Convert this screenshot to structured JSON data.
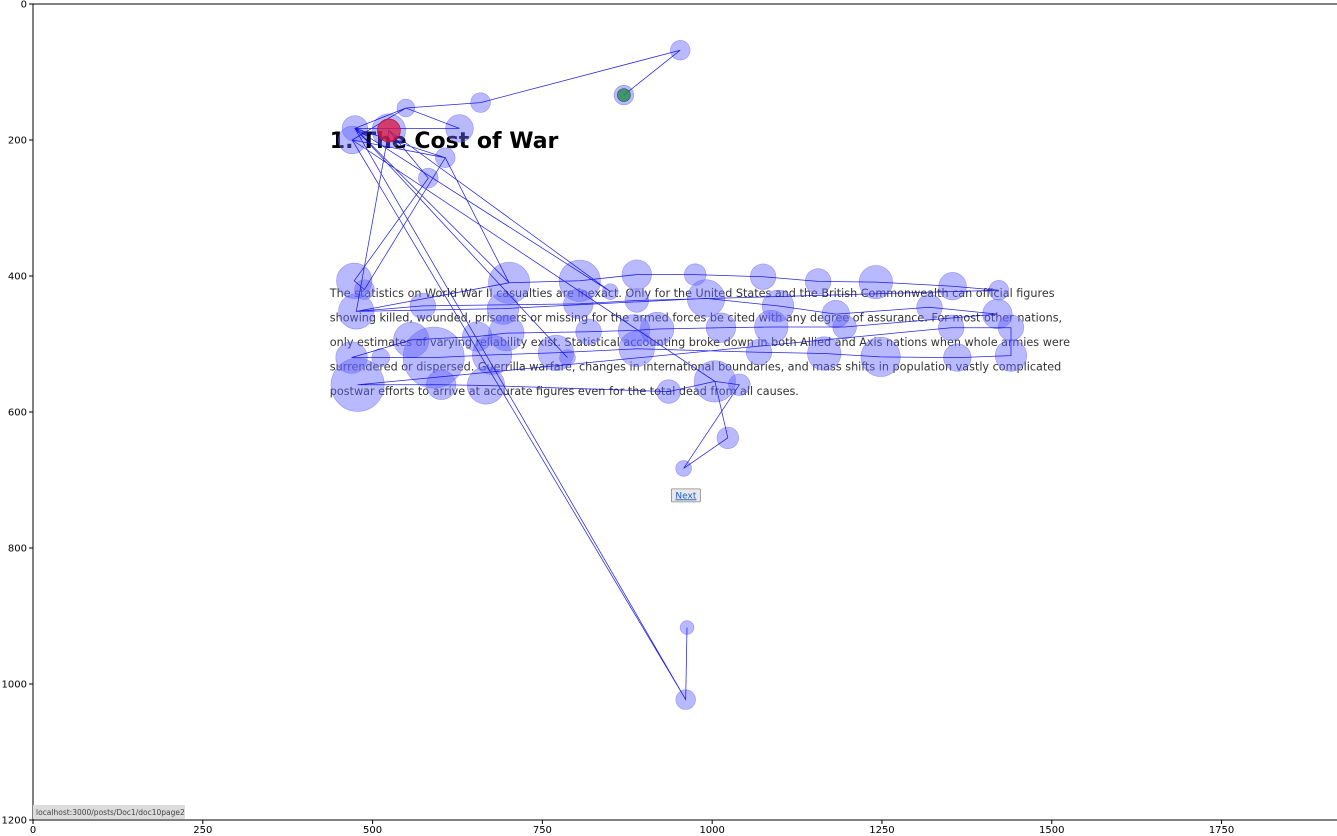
{
  "chart_data": {
    "type": "scatter",
    "xlim": [
      0,
      1920
    ],
    "ylim": [
      1200,
      0
    ],
    "x_ticks": [
      0,
      250,
      500,
      750,
      1000,
      1250,
      1500,
      1750
    ],
    "y_ticks": [
      0,
      200,
      400,
      600,
      800,
      1000,
      1200
    ],
    "grid": false,
    "background_page": {
      "heading": "1. The Cost of War",
      "paragraph_lines": [
        "The statistics on World War II casualties are inexact. Only for the United States and the British Commonwealth can official figures",
        "showing killed, wounded, prisoners or missing for the armed forces be cited with any degree of assurance. For most other nations,",
        "only estimates of varying reliability exist. Statistical accounting broke down in both Allied and Axis nations when whole armies were",
        "surrendered or dispersed. Guerrilla warfare, changes in international boundaries, and mass shifts in population vastly complicated",
        "postwar efforts to arrive at accurate figures even for the total dead from all causes."
      ],
      "next_button": "Next",
      "status_url": "localhost:3000/posts/Doc1/doc10page2"
    },
    "colors": {
      "path": "#0000dd",
      "fixation_fill": "#6464ff",
      "start": "#2e8b57",
      "end": "#dc143c"
    },
    "start_point": {
      "x": 870,
      "y": 134
    },
    "end_point": {
      "x": 524,
      "y": 186
    },
    "fixations": [
      {
        "x": 870,
        "y": 134,
        "r": 10
      },
      {
        "x": 953,
        "y": 68,
        "r": 10
      },
      {
        "x": 659,
        "y": 145,
        "r": 10
      },
      {
        "x": 549,
        "y": 153,
        "r": 9
      },
      {
        "x": 474,
        "y": 183,
        "r": 13
      },
      {
        "x": 628,
        "y": 183,
        "r": 14
      },
      {
        "x": 524,
        "y": 186,
        "r": 17
      },
      {
        "x": 470,
        "y": 200,
        "r": 14
      },
      {
        "x": 607,
        "y": 226,
        "r": 10
      },
      {
        "x": 582,
        "y": 256,
        "r": 10
      },
      {
        "x": 473,
        "y": 407,
        "r": 18
      },
      {
        "x": 488,
        "y": 420,
        "r": 10
      },
      {
        "x": 701,
        "y": 410,
        "r": 21
      },
      {
        "x": 805,
        "y": 407,
        "r": 21
      },
      {
        "x": 889,
        "y": 398,
        "r": 15
      },
      {
        "x": 975,
        "y": 398,
        "r": 11
      },
      {
        "x": 1075,
        "y": 401,
        "r": 13
      },
      {
        "x": 1156,
        "y": 408,
        "r": 13
      },
      {
        "x": 1241,
        "y": 409,
        "r": 17
      },
      {
        "x": 1354,
        "y": 415,
        "r": 14
      },
      {
        "x": 1422,
        "y": 421,
        "r": 10
      },
      {
        "x": 850,
        "y": 423,
        "r": 8
      },
      {
        "x": 889,
        "y": 436,
        "r": 12
      },
      {
        "x": 803,
        "y": 441,
        "r": 15
      },
      {
        "x": 574,
        "y": 444,
        "r": 13
      },
      {
        "x": 476,
        "y": 452,
        "r": 18
      },
      {
        "x": 692,
        "y": 448,
        "r": 16
      },
      {
        "x": 991,
        "y": 433,
        "r": 19
      },
      {
        "x": 1097,
        "y": 444,
        "r": 16
      },
      {
        "x": 1182,
        "y": 456,
        "r": 14
      },
      {
        "x": 1320,
        "y": 446,
        "r": 13
      },
      {
        "x": 1420,
        "y": 456,
        "r": 15
      },
      {
        "x": 1195,
        "y": 475,
        "r": 12
      },
      {
        "x": 1352,
        "y": 476,
        "r": 13
      },
      {
        "x": 1440,
        "y": 476,
        "r": 13
      },
      {
        "x": 1087,
        "y": 475,
        "r": 17
      },
      {
        "x": 1013,
        "y": 476,
        "r": 15
      },
      {
        "x": 919,
        "y": 478,
        "r": 17
      },
      {
        "x": 885,
        "y": 480,
        "r": 16
      },
      {
        "x": 818,
        "y": 482,
        "r": 13
      },
      {
        "x": 697,
        "y": 484,
        "r": 18
      },
      {
        "x": 654,
        "y": 489,
        "r": 15
      },
      {
        "x": 557,
        "y": 494,
        "r": 18
      },
      {
        "x": 469,
        "y": 520,
        "r": 16
      },
      {
        "x": 512,
        "y": 520,
        "r": 9
      },
      {
        "x": 590,
        "y": 520,
        "r": 31
      },
      {
        "x": 676,
        "y": 516,
        "r": 20
      },
      {
        "x": 770,
        "y": 513,
        "r": 18
      },
      {
        "x": 787,
        "y": 520,
        "r": 8
      },
      {
        "x": 889,
        "y": 507,
        "r": 18
      },
      {
        "x": 1069,
        "y": 512,
        "r": 13
      },
      {
        "x": 1165,
        "y": 514,
        "r": 17
      },
      {
        "x": 1248,
        "y": 519,
        "r": 20
      },
      {
        "x": 1361,
        "y": 520,
        "r": 14
      },
      {
        "x": 1440,
        "y": 517,
        "r": 16
      },
      {
        "x": 478,
        "y": 560,
        "r": 27
      },
      {
        "x": 601,
        "y": 560,
        "r": 15
      },
      {
        "x": 667,
        "y": 561,
        "r": 19
      },
      {
        "x": 936,
        "y": 570,
        "r": 12
      },
      {
        "x": 1004,
        "y": 555,
        "r": 21
      },
      {
        "x": 1040,
        "y": 560,
        "r": 11
      },
      {
        "x": 1023,
        "y": 638,
        "r": 11
      },
      {
        "x": 958,
        "y": 683,
        "r": 8
      },
      {
        "x": 963,
        "y": 917,
        "r": 7
      },
      {
        "x": 961,
        "y": 1023,
        "r": 10
      }
    ],
    "scanpath": [
      [
        870,
        134
      ],
      [
        953,
        68
      ],
      [
        659,
        145
      ],
      [
        549,
        153
      ],
      [
        474,
        183
      ],
      [
        628,
        183
      ],
      [
        549,
        153
      ],
      [
        470,
        200
      ],
      [
        607,
        226
      ],
      [
        488,
        420
      ],
      [
        473,
        407
      ],
      [
        582,
        256
      ],
      [
        524,
        186
      ],
      [
        476,
        452
      ],
      [
        701,
        410
      ],
      [
        805,
        407
      ],
      [
        889,
        398
      ],
      [
        975,
        398
      ],
      [
        1075,
        401
      ],
      [
        1156,
        408
      ],
      [
        1241,
        409
      ],
      [
        1354,
        415
      ],
      [
        1422,
        421
      ],
      [
        889,
        436
      ],
      [
        803,
        441
      ],
      [
        574,
        444
      ],
      [
        476,
        452
      ],
      [
        692,
        448
      ],
      [
        991,
        433
      ],
      [
        1097,
        444
      ],
      [
        1182,
        456
      ],
      [
        1320,
        446
      ],
      [
        1420,
        456
      ],
      [
        1195,
        475
      ],
      [
        1087,
        475
      ],
      [
        1013,
        476
      ],
      [
        919,
        478
      ],
      [
        885,
        480
      ],
      [
        818,
        482
      ],
      [
        697,
        484
      ],
      [
        654,
        489
      ],
      [
        557,
        494
      ],
      [
        469,
        520
      ],
      [
        512,
        520
      ],
      [
        590,
        520
      ],
      [
        676,
        516
      ],
      [
        770,
        513
      ],
      [
        889,
        507
      ],
      [
        1069,
        512
      ],
      [
        1165,
        514
      ],
      [
        1248,
        519
      ],
      [
        1361,
        520
      ],
      [
        1440,
        517
      ],
      [
        1440,
        476
      ],
      [
        1352,
        476
      ],
      [
        478,
        560
      ],
      [
        601,
        560
      ],
      [
        667,
        561
      ],
      [
        936,
        570
      ],
      [
        1004,
        555
      ],
      [
        1040,
        560
      ],
      [
        958,
        683
      ],
      [
        1023,
        638
      ],
      [
        1004,
        555
      ],
      [
        470,
        200
      ],
      [
        961,
        1023
      ],
      [
        963,
        917
      ],
      [
        961,
        1023
      ],
      [
        474,
        183
      ],
      [
        607,
        226
      ],
      [
        701,
        410
      ],
      [
        474,
        183
      ],
      [
        787,
        520
      ],
      [
        474,
        183
      ],
      [
        850,
        423
      ],
      [
        524,
        186
      ]
    ]
  }
}
